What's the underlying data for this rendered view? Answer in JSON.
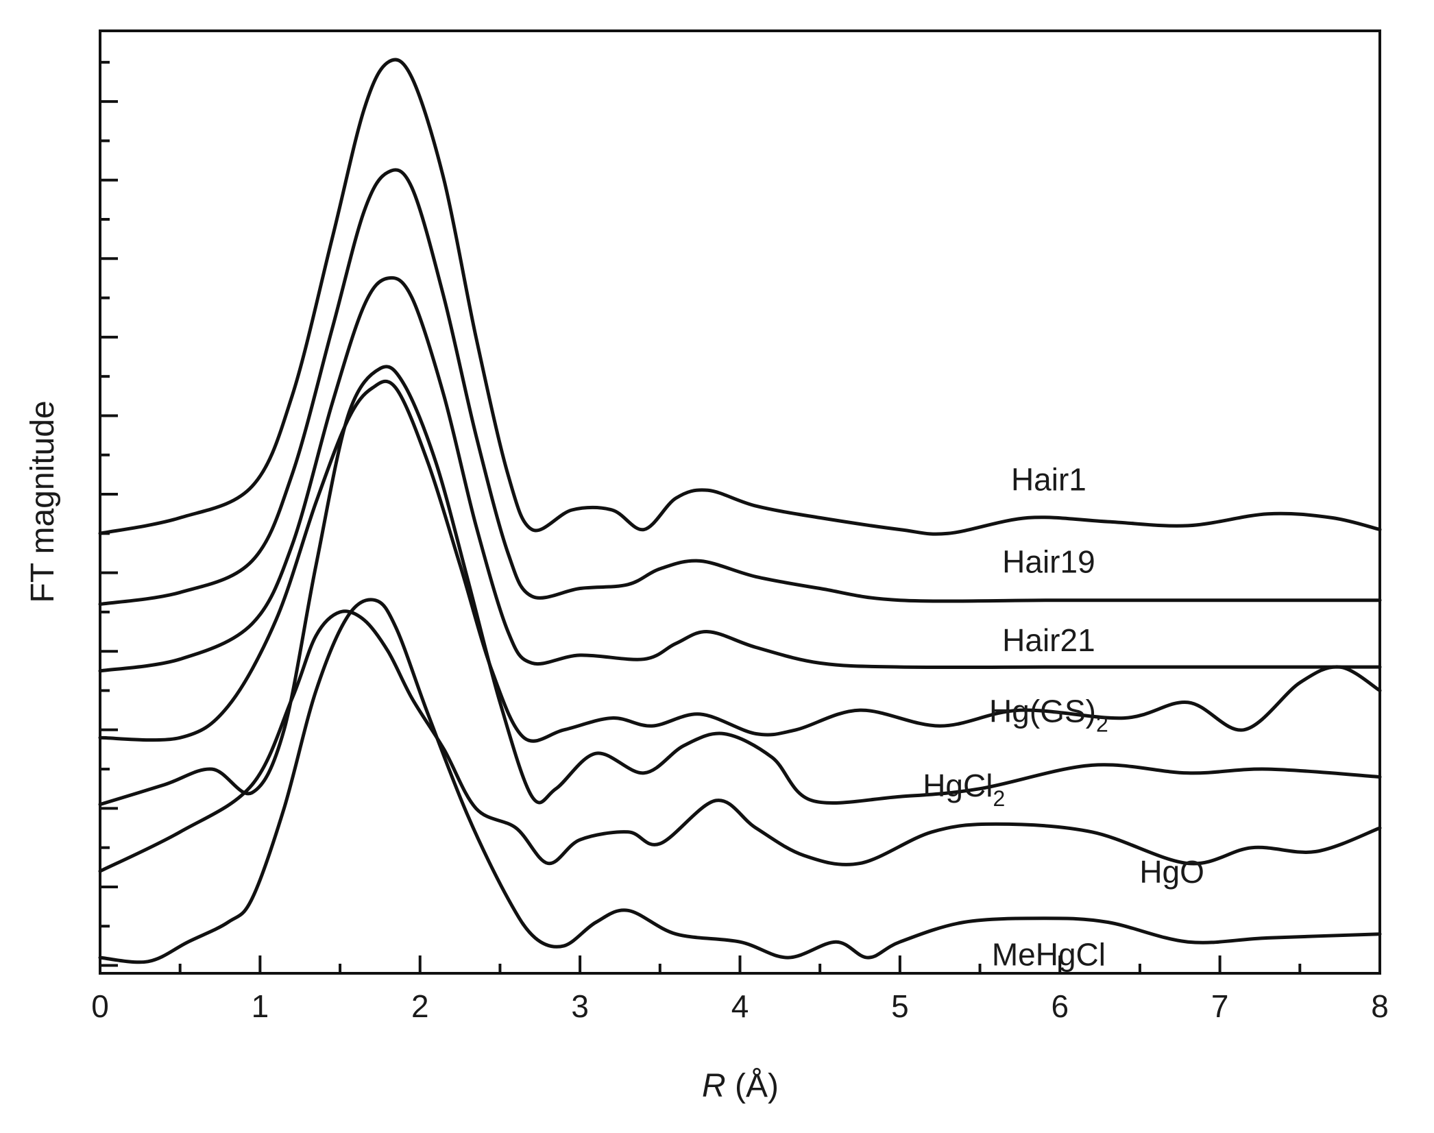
{
  "chart_data": {
    "type": "line",
    "xlabel_italic": "R",
    "xlabel_unit": " (Å)",
    "ylabel": "FT magnitude",
    "xlim": [
      0,
      8
    ],
    "x_ticks": [
      "0",
      "1",
      "2",
      "3",
      "4",
      "5",
      "6",
      "7",
      "8"
    ],
    "y_tick_labels": "none",
    "grid": false,
    "legend": "none",
    "line_color": "#111111",
    "series": [
      {
        "name": "Hair1",
        "label_main": "Hair1",
        "label_sub": "",
        "points": [
          [
            0,
            0.6
          ],
          [
            0.5,
            0.64
          ],
          [
            0.95,
            0.72
          ],
          [
            1.2,
            0.95
          ],
          [
            1.45,
            1.35
          ],
          [
            1.65,
            1.68
          ],
          [
            1.8,
            1.8
          ],
          [
            1.95,
            1.76
          ],
          [
            2.15,
            1.5
          ],
          [
            2.35,
            1.1
          ],
          [
            2.55,
            0.75
          ],
          [
            2.7,
            0.61
          ],
          [
            2.95,
            0.66
          ],
          [
            3.2,
            0.66
          ],
          [
            3.4,
            0.61
          ],
          [
            3.6,
            0.69
          ],
          [
            3.8,
            0.71
          ],
          [
            4.1,
            0.67
          ],
          [
            4.5,
            0.64
          ],
          [
            5.0,
            0.61
          ],
          [
            5.3,
            0.6
          ],
          [
            5.8,
            0.64
          ],
          [
            6.3,
            0.63
          ],
          [
            6.8,
            0.62
          ],
          [
            7.3,
            0.65
          ],
          [
            7.7,
            0.64
          ],
          [
            8.0,
            0.61
          ]
        ]
      },
      {
        "name": "Hair19",
        "label_main": "Hair19",
        "label_sub": "",
        "points": [
          [
            0,
            0.42
          ],
          [
            0.5,
            0.45
          ],
          [
            0.95,
            0.53
          ],
          [
            1.2,
            0.75
          ],
          [
            1.45,
            1.12
          ],
          [
            1.65,
            1.42
          ],
          [
            1.8,
            1.52
          ],
          [
            1.95,
            1.48
          ],
          [
            2.15,
            1.2
          ],
          [
            2.35,
            0.85
          ],
          [
            2.55,
            0.55
          ],
          [
            2.7,
            0.44
          ],
          [
            3.0,
            0.46
          ],
          [
            3.3,
            0.47
          ],
          [
            3.5,
            0.51
          ],
          [
            3.75,
            0.53
          ],
          [
            4.1,
            0.49
          ],
          [
            4.5,
            0.46
          ],
          [
            5.0,
            0.43
          ],
          [
            6.0,
            0.43
          ],
          [
            7.0,
            0.43
          ],
          [
            8.0,
            0.43
          ]
        ]
      },
      {
        "name": "Hair21",
        "label_main": "Hair21",
        "label_sub": "",
        "points": [
          [
            0,
            0.25
          ],
          [
            0.5,
            0.28
          ],
          [
            0.95,
            0.37
          ],
          [
            1.2,
            0.57
          ],
          [
            1.45,
            0.93
          ],
          [
            1.65,
            1.18
          ],
          [
            1.8,
            1.25
          ],
          [
            1.95,
            1.2
          ],
          [
            2.15,
            0.95
          ],
          [
            2.35,
            0.62
          ],
          [
            2.55,
            0.35
          ],
          [
            2.7,
            0.27
          ],
          [
            3.0,
            0.29
          ],
          [
            3.4,
            0.28
          ],
          [
            3.6,
            0.32
          ],
          [
            3.8,
            0.35
          ],
          [
            4.1,
            0.31
          ],
          [
            4.5,
            0.27
          ],
          [
            5.0,
            0.26
          ],
          [
            6.0,
            0.26
          ],
          [
            7.0,
            0.26
          ],
          [
            8.0,
            0.26
          ]
        ]
      },
      {
        "name": "Hg(GS)2",
        "label_main": "Hg(GS)",
        "label_sub": "2",
        "points": [
          [
            0,
            0.08
          ],
          [
            0.5,
            0.08
          ],
          [
            0.8,
            0.16
          ],
          [
            1.1,
            0.38
          ],
          [
            1.35,
            0.68
          ],
          [
            1.55,
            0.89
          ],
          [
            1.7,
            0.97
          ],
          [
            1.85,
            0.97
          ],
          [
            2.05,
            0.78
          ],
          [
            2.25,
            0.52
          ],
          [
            2.45,
            0.25
          ],
          [
            2.65,
            0.08
          ],
          [
            2.9,
            0.1
          ],
          [
            3.2,
            0.13
          ],
          [
            3.45,
            0.11
          ],
          [
            3.75,
            0.14
          ],
          [
            4.1,
            0.09
          ],
          [
            4.35,
            0.1
          ],
          [
            4.75,
            0.15
          ],
          [
            5.25,
            0.11
          ],
          [
            5.75,
            0.15
          ],
          [
            6.4,
            0.13
          ],
          [
            6.8,
            0.17
          ],
          [
            7.15,
            0.1
          ],
          [
            7.5,
            0.22
          ],
          [
            7.75,
            0.26
          ],
          [
            8.0,
            0.2
          ]
        ]
      },
      {
        "name": "HgCl2",
        "label_main": "HgCl",
        "label_sub": "2",
        "points": [
          [
            0,
            -0.09
          ],
          [
            0.4,
            -0.04
          ],
          [
            0.7,
            0.0
          ],
          [
            0.95,
            -0.06
          ],
          [
            1.15,
            0.1
          ],
          [
            1.35,
            0.52
          ],
          [
            1.55,
            0.9
          ],
          [
            1.75,
            1.02
          ],
          [
            1.9,
            0.98
          ],
          [
            2.1,
            0.78
          ],
          [
            2.3,
            0.48
          ],
          [
            2.5,
            0.17
          ],
          [
            2.7,
            -0.07
          ],
          [
            2.85,
            -0.05
          ],
          [
            3.1,
            0.04
          ],
          [
            3.4,
            -0.01
          ],
          [
            3.65,
            0.06
          ],
          [
            3.9,
            0.09
          ],
          [
            4.2,
            0.03
          ],
          [
            4.45,
            -0.08
          ],
          [
            5.0,
            -0.07
          ],
          [
            5.5,
            -0.05
          ],
          [
            6.2,
            0.01
          ],
          [
            6.8,
            -0.01
          ],
          [
            7.3,
            0.0
          ],
          [
            8.0,
            -0.02
          ]
        ]
      },
      {
        "name": "HgO",
        "label_main": "HgO",
        "label_sub": "",
        "points": [
          [
            0,
            -0.26
          ],
          [
            0.5,
            -0.16
          ],
          [
            0.95,
            -0.04
          ],
          [
            1.2,
            0.18
          ],
          [
            1.35,
            0.34
          ],
          [
            1.5,
            0.4
          ],
          [
            1.65,
            0.38
          ],
          [
            1.8,
            0.3
          ],
          [
            1.95,
            0.18
          ],
          [
            2.15,
            0.05
          ],
          [
            2.35,
            -0.1
          ],
          [
            2.6,
            -0.15
          ],
          [
            2.8,
            -0.24
          ],
          [
            3.0,
            -0.18
          ],
          [
            3.3,
            -0.16
          ],
          [
            3.5,
            -0.19
          ],
          [
            3.85,
            -0.08
          ],
          [
            4.1,
            -0.15
          ],
          [
            4.4,
            -0.22
          ],
          [
            4.75,
            -0.24
          ],
          [
            5.2,
            -0.16
          ],
          [
            5.6,
            -0.14
          ],
          [
            6.2,
            -0.16
          ],
          [
            6.8,
            -0.24
          ],
          [
            7.2,
            -0.2
          ],
          [
            7.6,
            -0.21
          ],
          [
            8.0,
            -0.15
          ]
        ]
      },
      {
        "name": "MeHgCl",
        "label_main": "MeHgCl",
        "label_sub": "",
        "points": [
          [
            0,
            -0.48
          ],
          [
            0.3,
            -0.49
          ],
          [
            0.55,
            -0.44
          ],
          [
            0.8,
            -0.39
          ],
          [
            0.95,
            -0.33
          ],
          [
            1.15,
            -0.1
          ],
          [
            1.35,
            0.2
          ],
          [
            1.55,
            0.39
          ],
          [
            1.72,
            0.43
          ],
          [
            1.85,
            0.36
          ],
          [
            2.05,
            0.14
          ],
          [
            2.3,
            -0.12
          ],
          [
            2.55,
            -0.33
          ],
          [
            2.72,
            -0.43
          ],
          [
            2.9,
            -0.45
          ],
          [
            3.1,
            -0.39
          ],
          [
            3.3,
            -0.36
          ],
          [
            3.6,
            -0.42
          ],
          [
            4.0,
            -0.44
          ],
          [
            4.3,
            -0.48
          ],
          [
            4.6,
            -0.44
          ],
          [
            4.8,
            -0.48
          ],
          [
            5.0,
            -0.44
          ],
          [
            5.4,
            -0.39
          ],
          [
            5.9,
            -0.38
          ],
          [
            6.3,
            -0.39
          ],
          [
            6.8,
            -0.44
          ],
          [
            7.3,
            -0.43
          ],
          [
            8.0,
            -0.42
          ]
        ]
      }
    ],
    "series_label_positions": [
      {
        "x": 5.93,
        "y": 0.71
      },
      {
        "x": 5.93,
        "y": 0.5
      },
      {
        "x": 5.93,
        "y": 0.3
      },
      {
        "x": 5.93,
        "y": 0.12
      },
      {
        "x": 5.4,
        "y": -0.07
      },
      {
        "x": 6.7,
        "y": -0.29
      },
      {
        "x": 5.93,
        "y": -0.5
      }
    ]
  }
}
